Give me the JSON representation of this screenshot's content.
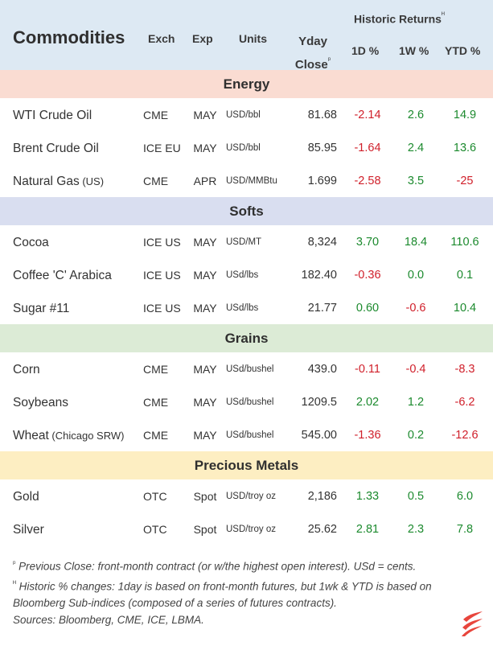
{
  "header": {
    "title": "Commodities",
    "exch": "Exch",
    "exp": "Exp",
    "units": "Units",
    "yday_line1": "Yday",
    "yday_line2": "Close",
    "yday_mark": "ᵖ",
    "historic": "Historic Returns",
    "historic_mark": "ᴴ",
    "d1": "1D %",
    "w1": "1W %",
    "ytd": "YTD %"
  },
  "colors": {
    "header_bg": "#dde9f3",
    "energy_bg": "#fadcd2",
    "softs_bg": "#d9def0",
    "grains_bg": "#dcebd6",
    "metals_bg": "#fdeec2",
    "negative": "#d01f2a",
    "positive": "#1c8a2e",
    "logo": "#e8453c"
  },
  "sections": [
    {
      "name": "Energy",
      "rows": [
        {
          "name": "WTI Crude Oil",
          "sub": "",
          "exch": "CME",
          "exp": "MAY",
          "units": "USD/bbl",
          "close": "81.68",
          "d1": "-2.14",
          "w1": "2.6",
          "ytd": "14.9"
        },
        {
          "name": "Brent Crude Oil",
          "sub": "",
          "exch": "ICE EU",
          "exp": "MAY",
          "units": "USD/bbl",
          "close": "85.95",
          "d1": "-1.64",
          "w1": "2.4",
          "ytd": "13.6"
        },
        {
          "name": "Natural Gas",
          "sub": " (US)",
          "exch": "CME",
          "exp": "APR",
          "units": "USD/MMBtu",
          "close": "1.699",
          "d1": "-2.58",
          "w1": "3.5",
          "ytd": "-25"
        }
      ]
    },
    {
      "name": "Softs",
      "rows": [
        {
          "name": "Cocoa",
          "sub": "",
          "exch": "ICE US",
          "exp": "MAY",
          "units": "USD/MT",
          "close": "8,324",
          "d1": "3.70",
          "w1": "18.4",
          "ytd": "110.6"
        },
        {
          "name": "Coffee 'C' Arabica",
          "sub": "",
          "exch": "ICE US",
          "exp": "MAY",
          "units": "USd/lbs",
          "close": "182.40",
          "d1": "-0.36",
          "w1": "0.0",
          "ytd": "0.1"
        },
        {
          "name": "Sugar #11",
          "sub": "",
          "exch": "ICE US",
          "exp": "MAY",
          "units": "USd/lbs",
          "close": "21.77",
          "d1": "0.60",
          "w1": "-0.6",
          "ytd": "10.4"
        }
      ]
    },
    {
      "name": "Grains",
      "rows": [
        {
          "name": "Corn",
          "sub": "",
          "exch": "CME",
          "exp": "MAY",
          "units": "USd/bushel",
          "close": "439.0",
          "d1": "-0.11",
          "w1": "-0.4",
          "ytd": "-8.3"
        },
        {
          "name": "Soybeans",
          "sub": "",
          "exch": "CME",
          "exp": "MAY",
          "units": "USd/bushel",
          "close": "1209.5",
          "d1": "2.02",
          "w1": "1.2",
          "ytd": "-6.2"
        },
        {
          "name": "Wheat",
          "sub": " (Chicago SRW)",
          "exch": "CME",
          "exp": "MAY",
          "units": "USd/bushel",
          "close": "545.00",
          "d1": "-1.36",
          "w1": "0.2",
          "ytd": "-12.6"
        }
      ]
    },
    {
      "name": "Precious Metals",
      "rows": [
        {
          "name": "Gold",
          "sub": "",
          "exch": "OTC",
          "exp": "Spot",
          "units": "USD/troy oz",
          "close": "2,186",
          "d1": "1.33",
          "w1": "0.5",
          "ytd": "6.0"
        },
        {
          "name": "Silver",
          "sub": "",
          "exch": "OTC",
          "exp": "Spot",
          "units": "USD/troy oz",
          "close": "25.62",
          "d1": "2.81",
          "w1": "2.3",
          "ytd": "7.8"
        }
      ]
    }
  ],
  "footer": {
    "mark1": "ᵖ",
    "note1": " Previous Close: front-month contract (or w/the highest open interest). USd = cents.",
    "mark2": "ᴴ",
    "note2": " Historic % changes: 1day is based on front-month futures, but 1wk & YTD is based on Bloomberg Sub-indices (composed of a series of futures contracts).",
    "sources": "Sources: Bloomberg, CME, ICE, LBMA."
  },
  "logo_icon": "flame-logo-icon"
}
